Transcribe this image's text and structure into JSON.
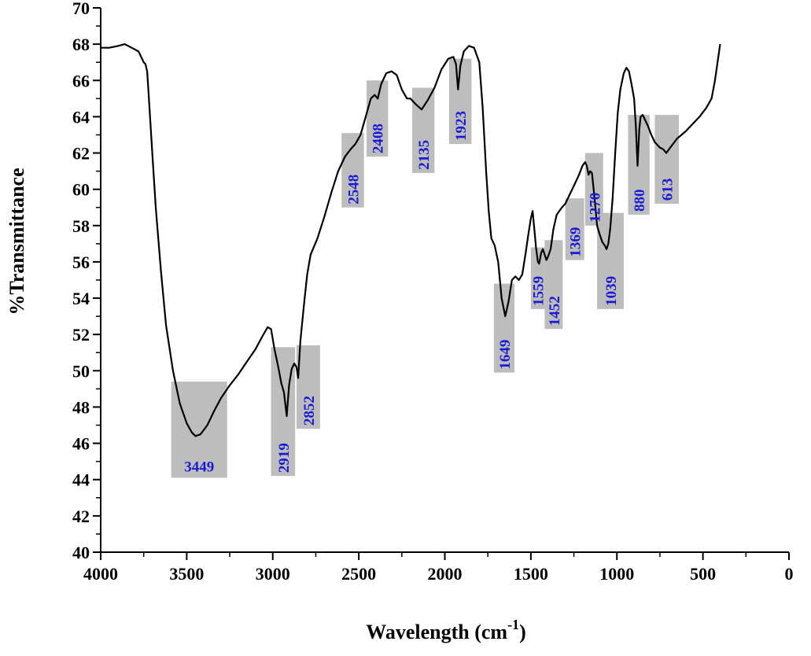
{
  "chart_data": {
    "type": "line",
    "xlabel": "Wavelength (cm",
    "xlabel_sup": "-1",
    "xlabel_close": ")",
    "ylabel": "%Transmittance",
    "xlim": [
      4000,
      0
    ],
    "ylim": [
      40,
      70
    ],
    "x_ticks": [
      "4000",
      "3500",
      "3000",
      "2500",
      "2000",
      "1500",
      "1000",
      "500",
      "0"
    ],
    "y_ticks": [
      "40",
      "42",
      "44",
      "46",
      "48",
      "50",
      "52",
      "54",
      "56",
      "58",
      "60",
      "62",
      "64",
      "66",
      "68",
      "70"
    ],
    "line_color": "#000000",
    "band_color": "#bdbdbd",
    "label_color": "#1a1ad6",
    "series": [
      {
        "points": [
          [
            4000,
            67.8
          ],
          [
            3950,
            67.8
          ],
          [
            3900,
            67.9
          ],
          [
            3860,
            68.0
          ],
          [
            3820,
            67.8
          ],
          [
            3780,
            67.6
          ],
          [
            3750,
            67.0
          ],
          [
            3740,
            66.9
          ],
          [
            3730,
            66.5
          ],
          [
            3720,
            65.0
          ],
          [
            3700,
            62.0
          ],
          [
            3680,
            59.0
          ],
          [
            3650,
            55.5
          ],
          [
            3620,
            52.5
          ],
          [
            3580,
            50.0
          ],
          [
            3540,
            48.2
          ],
          [
            3500,
            47.1
          ],
          [
            3470,
            46.6
          ],
          [
            3449,
            46.4
          ],
          [
            3420,
            46.5
          ],
          [
            3380,
            47.0
          ],
          [
            3340,
            47.8
          ],
          [
            3300,
            48.5
          ],
          [
            3250,
            49.2
          ],
          [
            3200,
            49.8
          ],
          [
            3150,
            50.5
          ],
          [
            3100,
            51.2
          ],
          [
            3060,
            51.9
          ],
          [
            3030,
            52.4
          ],
          [
            3010,
            52.3
          ],
          [
            2990,
            51.2
          ],
          [
            2970,
            50.3
          ],
          [
            2950,
            49.3
          ],
          [
            2935,
            48.8
          ],
          [
            2919,
            47.5
          ],
          [
            2905,
            49.2
          ],
          [
            2890,
            50.1
          ],
          [
            2875,
            50.4
          ],
          [
            2862,
            50.2
          ],
          [
            2852,
            49.6
          ],
          [
            2840,
            51.6
          ],
          [
            2820,
            53.5
          ],
          [
            2800,
            55.3
          ],
          [
            2780,
            56.4
          ],
          [
            2740,
            57.3
          ],
          [
            2700,
            58.5
          ],
          [
            2660,
            59.8
          ],
          [
            2620,
            61.0
          ],
          [
            2580,
            61.8
          ],
          [
            2548,
            62.2
          ],
          [
            2520,
            62.5
          ],
          [
            2490,
            63.0
          ],
          [
            2460,
            64.0
          ],
          [
            2430,
            65.0
          ],
          [
            2408,
            65.2
          ],
          [
            2390,
            65.0
          ],
          [
            2370,
            65.8
          ],
          [
            2340,
            66.4
          ],
          [
            2310,
            66.5
          ],
          [
            2280,
            66.3
          ],
          [
            2250,
            65.5
          ],
          [
            2220,
            65.0
          ],
          [
            2200,
            65.0
          ],
          [
            2170,
            64.7
          ],
          [
            2135,
            64.4
          ],
          [
            2100,
            64.9
          ],
          [
            2060,
            65.6
          ],
          [
            2020,
            66.6
          ],
          [
            1980,
            67.2
          ],
          [
            1950,
            67.3
          ],
          [
            1935,
            66.9
          ],
          [
            1923,
            65.5
          ],
          [
            1910,
            66.8
          ],
          [
            1890,
            67.6
          ],
          [
            1860,
            67.9
          ],
          [
            1830,
            67.8
          ],
          [
            1800,
            67.0
          ],
          [
            1780,
            64.5
          ],
          [
            1760,
            61.0
          ],
          [
            1745,
            58.8
          ],
          [
            1730,
            57.3
          ],
          [
            1710,
            56.9
          ],
          [
            1690,
            56.0
          ],
          [
            1670,
            54.0
          ],
          [
            1649,
            53.0
          ],
          [
            1630,
            53.8
          ],
          [
            1610,
            55.0
          ],
          [
            1590,
            55.2
          ],
          [
            1570,
            55.0
          ],
          [
            1550,
            55.3
          ],
          [
            1530,
            56.5
          ],
          [
            1515,
            57.5
          ],
          [
            1500,
            58.4
          ],
          [
            1490,
            58.8
          ],
          [
            1480,
            57.8
          ],
          [
            1470,
            56.8
          ],
          [
            1459,
            56.0
          ],
          [
            1452,
            55.9
          ],
          [
            1440,
            56.5
          ],
          [
            1430,
            56.7
          ],
          [
            1420,
            56.4
          ],
          [
            1410,
            56.1
          ],
          [
            1400,
            56.3
          ],
          [
            1385,
            56.7
          ],
          [
            1369,
            57.8
          ],
          [
            1350,
            58.6
          ],
          [
            1320,
            59.0
          ],
          [
            1300,
            59.2
          ],
          [
            1280,
            59.6
          ],
          [
            1250,
            60.2
          ],
          [
            1220,
            60.8
          ],
          [
            1200,
            61.3
          ],
          [
            1185,
            61.5
          ],
          [
            1175,
            61.3
          ],
          [
            1165,
            60.8
          ],
          [
            1155,
            61.0
          ],
          [
            1145,
            60.9
          ],
          [
            1135,
            60.0
          ],
          [
            1125,
            59.0
          ],
          [
            1115,
            58.0
          ],
          [
            1100,
            57.5
          ],
          [
            1085,
            57.1
          ],
          [
            1070,
            56.9
          ],
          [
            1060,
            56.7
          ],
          [
            1050,
            57.0
          ],
          [
            1039,
            57.8
          ],
          [
            1025,
            59.5
          ],
          [
            1010,
            62.0
          ],
          [
            995,
            64.2
          ],
          [
            980,
            65.5
          ],
          [
            960,
            66.4
          ],
          [
            945,
            66.7
          ],
          [
            930,
            66.5
          ],
          [
            915,
            65.8
          ],
          [
            900,
            65.0
          ],
          [
            890,
            63.5
          ],
          [
            880,
            61.3
          ],
          [
            870,
            63.3
          ],
          [
            862,
            64.0
          ],
          [
            850,
            64.1
          ],
          [
            835,
            63.8
          ],
          [
            820,
            63.5
          ],
          [
            800,
            63.0
          ],
          [
            780,
            62.6
          ],
          [
            750,
            62.3
          ],
          [
            730,
            62.2
          ],
          [
            713,
            62.0
          ],
          [
            690,
            62.3
          ],
          [
            650,
            62.8
          ],
          [
            600,
            63.2
          ],
          [
            560,
            63.6
          ],
          [
            520,
            64.0
          ],
          [
            480,
            64.5
          ],
          [
            450,
            65.0
          ],
          [
            430,
            66.0
          ],
          [
            415,
            67.0
          ],
          [
            400,
            68.0
          ]
        ]
      }
    ],
    "annotations": [
      {
        "label": "3449",
        "x_range": [
          3590,
          3265
        ],
        "y_range": [
          44.1,
          49.4
        ],
        "orientation": "horizontal"
      },
      {
        "label": "2919",
        "x_range": [
          3010,
          2870
        ],
        "y_range": [
          44.2,
          51.3
        ],
        "orientation": "vertical"
      },
      {
        "label": "2852",
        "x_range": [
          2862,
          2725
        ],
        "y_range": [
          46.8,
          51.4
        ],
        "orientation": "vertical"
      },
      {
        "label": "2548",
        "x_range": [
          2600,
          2470
        ],
        "y_range": [
          59.0,
          63.1
        ],
        "orientation": "vertical"
      },
      {
        "label": "2408",
        "x_range": [
          2455,
          2330
        ],
        "y_range": [
          61.8,
          66.0
        ],
        "orientation": "vertical"
      },
      {
        "label": "2135",
        "x_range": [
          2190,
          2060
        ],
        "y_range": [
          60.9,
          65.6
        ],
        "orientation": "vertical"
      },
      {
        "label": "1923",
        "x_range": [
          1975,
          1845
        ],
        "y_range": [
          62.5,
          67.2
        ],
        "orientation": "vertical"
      },
      {
        "label": "1649",
        "x_range": [
          1715,
          1595
        ],
        "y_range": [
          49.9,
          54.8
        ],
        "orientation": "vertical"
      },
      {
        "label": "1559",
        "x_range": [
          1500,
          1420
        ],
        "y_range": [
          53.4,
          56.8
        ],
        "orientation": "vertical"
      },
      {
        "label": "1452",
        "x_range": [
          1420,
          1315
        ],
        "y_range": [
          52.3,
          57.2
        ],
        "orientation": "vertical"
      },
      {
        "label": "1369",
        "x_range": [
          1300,
          1190
        ],
        "y_range": [
          56.1,
          59.5
        ],
        "orientation": "vertical"
      },
      {
        "label": "1270",
        "x_range": [
          1185,
          1080
        ],
        "y_range": [
          58.0,
          62.0
        ],
        "orientation": "vertical"
      },
      {
        "label": "1039",
        "x_range": [
          1115,
          960
        ],
        "y_range": [
          53.4,
          58.7
        ],
        "orientation": "vertical"
      },
      {
        "label": "880",
        "x_range": [
          935,
          810
        ],
        "y_range": [
          58.6,
          64.1
        ],
        "orientation": "vertical"
      },
      {
        "label": "613",
        "x_range": [
          780,
          640
        ],
        "y_range": [
          59.2,
          64.1
        ],
        "orientation": "vertical"
      }
    ]
  }
}
